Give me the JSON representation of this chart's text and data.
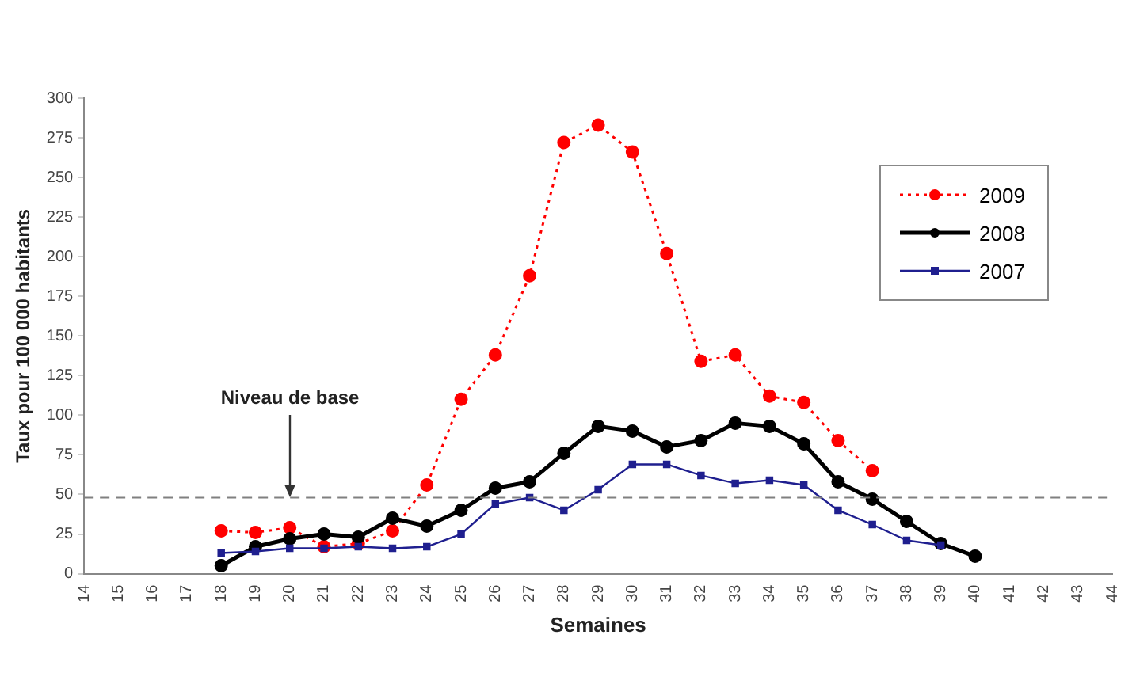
{
  "chart_data": {
    "type": "line",
    "xlabel": "Semaines",
    "ylabel": "Taux pour 100 000 habitants",
    "xlim": [
      14,
      44
    ],
    "xticks": [
      14,
      15,
      16,
      17,
      18,
      19,
      20,
      21,
      22,
      23,
      24,
      25,
      26,
      27,
      28,
      29,
      30,
      31,
      32,
      33,
      34,
      35,
      36,
      37,
      38,
      39,
      40,
      41,
      42,
      43,
      44
    ],
    "ylim": [
      0,
      300
    ],
    "yticks": [
      0,
      25,
      50,
      75,
      100,
      125,
      150,
      175,
      200,
      225,
      250,
      275,
      300
    ],
    "grid": false,
    "legend": "top right",
    "ref_lines": [
      {
        "axis": "y",
        "value": 48,
        "color": "#808080",
        "line_style": "dashed"
      }
    ],
    "annotations": [
      {
        "text": "Niveau de base",
        "x": 20,
        "y": 48
      }
    ],
    "series": [
      {
        "name": "2009",
        "color": "#ff0000",
        "marker": "circle",
        "line_style": "dotted",
        "x": [
          18,
          19,
          20,
          21,
          22,
          23,
          24,
          25,
          26,
          27,
          28,
          29,
          30,
          31,
          32,
          33,
          34,
          35,
          36,
          37
        ],
        "values": [
          27,
          26,
          29,
          17,
          19,
          27,
          56,
          110,
          138,
          188,
          272,
          283,
          266,
          202,
          134,
          138,
          112,
          108,
          84,
          65
        ]
      },
      {
        "name": "2008",
        "color": "#000000",
        "marker": "circle",
        "line_style": "solid",
        "x": [
          18,
          19,
          20,
          21,
          22,
          23,
          24,
          25,
          26,
          27,
          28,
          29,
          30,
          31,
          32,
          33,
          34,
          35,
          36,
          37,
          38,
          39,
          40
        ],
        "values": [
          5,
          17,
          22,
          25,
          23,
          35,
          30,
          40,
          54,
          58,
          76,
          93,
          90,
          80,
          84,
          95,
          93,
          82,
          58,
          47,
          33,
          19,
          11
        ]
      },
      {
        "name": "2007",
        "color": "#1f1f8f",
        "marker": "square",
        "line_style": "solid",
        "x": [
          18,
          19,
          20,
          21,
          22,
          23,
          24,
          25,
          26,
          27,
          28,
          29,
          30,
          31,
          32,
          33,
          34,
          35,
          36,
          37,
          38,
          39
        ],
        "values": [
          13,
          14,
          16,
          16,
          17,
          16,
          17,
          25,
          44,
          48,
          40,
          53,
          69,
          69,
          62,
          57,
          59,
          56,
          40,
          31,
          21,
          18
        ]
      }
    ]
  }
}
